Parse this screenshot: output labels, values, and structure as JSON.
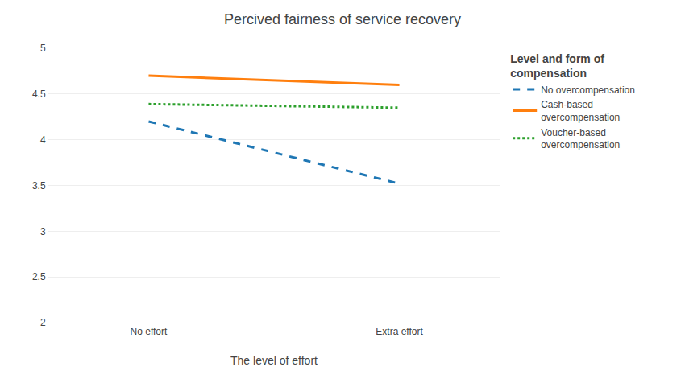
{
  "chart_data": {
    "type": "line",
    "title": "Percived fairness of service recovery",
    "xlabel": "The level of effort",
    "categories": [
      "No effort",
      "Extra effort"
    ],
    "series": [
      {
        "name": "No overcompensation",
        "values": [
          4.2,
          3.52
        ],
        "line_style": "dashed"
      },
      {
        "name": "Cash-based\novercompensation",
        "values": [
          4.7,
          4.6
        ],
        "line_style": "solid"
      },
      {
        "name": "Voucher-based\novercompensation",
        "values": [
          4.39,
          4.35
        ],
        "line_style": "dotted"
      }
    ],
    "ylim": [
      2,
      5
    ],
    "yticks": [
      2,
      2.5,
      3,
      3.5,
      4,
      4.5,
      5
    ],
    "grid": true,
    "legend": "right",
    "legend_title": "Level and form of\ncompensation"
  }
}
